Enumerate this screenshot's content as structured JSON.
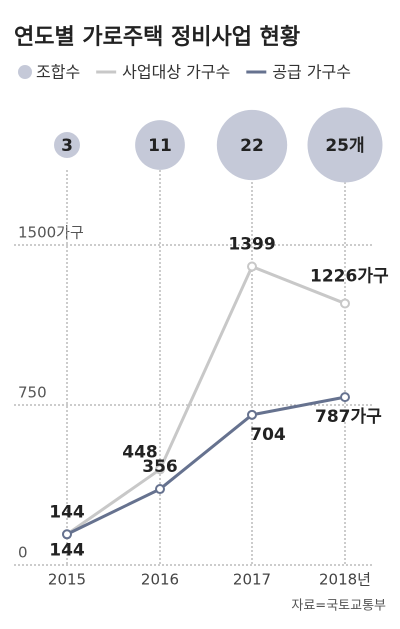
{
  "chart_data": {
    "type": "line",
    "title": "연도별 가로주택 정비사업 현황",
    "categories": [
      "2015",
      "2016",
      "2017",
      "2018년"
    ],
    "bubbles": {
      "name": "조합수",
      "color": "#c5c9d8",
      "values": [
        3,
        11,
        22,
        25
      ],
      "value_labels": [
        "3",
        "11",
        "22",
        "25개"
      ]
    },
    "series": [
      {
        "name": "사업대상 가구수",
        "color": "#c8c8c8",
        "values": [
          144,
          448,
          1399,
          1226
        ],
        "value_labels": [
          "144",
          "448",
          "1399",
          "1226가구"
        ]
      },
      {
        "name": "공급 가구수",
        "color": "#66728f",
        "values": [
          144,
          356,
          704,
          787
        ],
        "value_labels": [
          "144",
          "356",
          "704",
          "787가구"
        ]
      }
    ],
    "ylim": [
      0,
      1500
    ],
    "yticks": [
      0,
      750,
      {
        "value": 1500,
        "label": "1500가구"
      }
    ],
    "grid": true,
    "source": "자료=국토교통부"
  }
}
